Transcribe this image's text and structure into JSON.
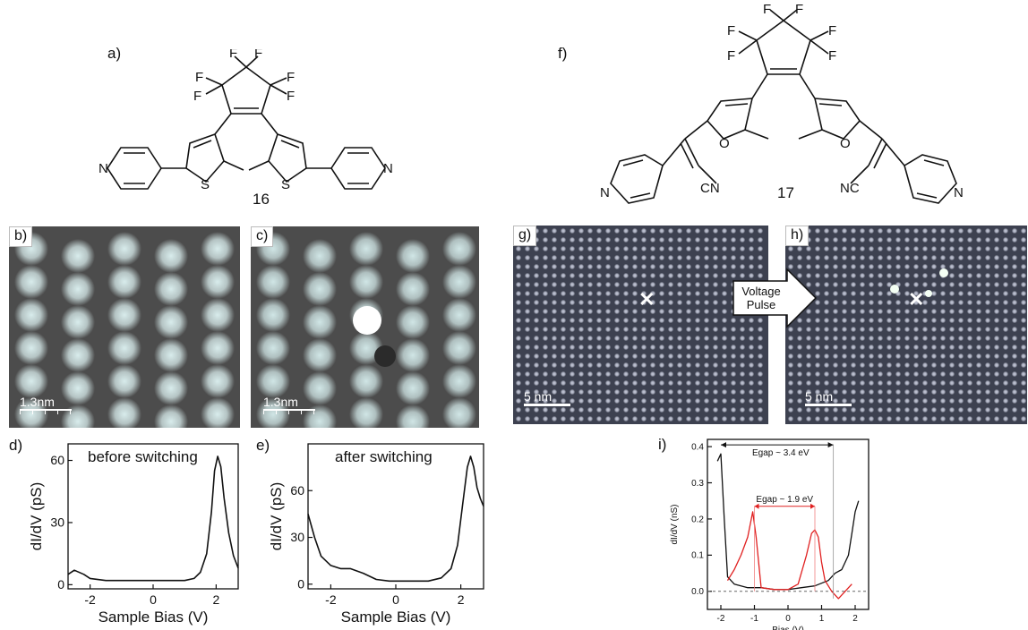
{
  "panels": {
    "a": {
      "label": "a)",
      "compound": "16"
    },
    "b": {
      "label": "b)",
      "scale": "1.3nm"
    },
    "c": {
      "label": "c)",
      "scale": "1.3nm"
    },
    "d": {
      "label": "d)",
      "title": "before switching",
      "xlabel": "Sample Bias (V)",
      "ylabel": "dI/dV (pS)"
    },
    "e": {
      "label": "e)",
      "title": "after switching",
      "xlabel": "Sample Bias (V)",
      "ylabel": "dI/dV (pS)"
    },
    "f": {
      "label": "f)",
      "compound": "17"
    },
    "g": {
      "label": "g)",
      "scale": "5 nm"
    },
    "h": {
      "label": "h)",
      "scale": "5 nm"
    },
    "arrow": {
      "line1": "Voltage",
      "line2": "Pulse"
    },
    "i": {
      "label": "i)",
      "xlabel": "Bias (V)",
      "ylabel": "dI/dV (nS)",
      "gap_black": "Egap ~ 3.4 eV",
      "gap_red": "Egap ~ 1.9 eV"
    }
  },
  "molecule_atoms": {
    "F": "F",
    "N": "N",
    "S": "S",
    "O": "O",
    "CN": "CN",
    "NC": "NC"
  },
  "chart_data": [
    {
      "type": "line",
      "title": "before switching",
      "xlabel": "Sample Bias (V)",
      "ylabel": "dI/dV (pS)",
      "xlim": [
        -2.7,
        2.7
      ],
      "ylim": [
        -2,
        68
      ],
      "xticks": [
        -2,
        0,
        2
      ],
      "yticks": [
        0,
        30,
        60
      ],
      "series": [
        {
          "color": "#111111",
          "x": [
            -2.7,
            -2.5,
            -2.2,
            -2.0,
            -1.5,
            -1.0,
            -0.5,
            0.0,
            0.5,
            1.0,
            1.3,
            1.5,
            1.7,
            1.85,
            1.95,
            2.05,
            2.15,
            2.25,
            2.4,
            2.55,
            2.7
          ],
          "y": [
            5,
            7,
            5,
            3,
            2,
            2,
            2,
            2,
            2,
            2,
            3,
            6,
            15,
            35,
            55,
            62,
            57,
            42,
            25,
            14,
            8
          ]
        }
      ]
    },
    {
      "type": "line",
      "title": "after switching",
      "xlabel": "Sample Bias (V)",
      "ylabel": "dI/dV (pS)",
      "xlim": [
        -2.7,
        2.7
      ],
      "ylim": [
        -3,
        90
      ],
      "xticks": [
        -2,
        0,
        2
      ],
      "yticks": [
        0,
        30,
        60
      ],
      "series": [
        {
          "color": "#111111",
          "x": [
            -2.7,
            -2.5,
            -2.3,
            -2.0,
            -1.7,
            -1.4,
            -1.0,
            -0.6,
            -0.2,
            0.2,
            0.6,
            1.0,
            1.4,
            1.7,
            1.9,
            2.05,
            2.2,
            2.3,
            2.4,
            2.5,
            2.6,
            2.7
          ],
          "y": [
            45,
            30,
            18,
            12,
            10,
            10,
            7,
            3,
            2,
            2,
            2,
            2,
            4,
            10,
            25,
            50,
            75,
            82,
            75,
            62,
            55,
            50
          ]
        }
      ]
    },
    {
      "type": "line",
      "xlabel": "Bias (V)",
      "ylabel": "dI/dV (nS)",
      "xlim": [
        -2.4,
        2.4
      ],
      "ylim": [
        -0.05,
        0.42
      ],
      "xticks": [
        -2,
        -1,
        0,
        1,
        2
      ],
      "yticks": [
        0.0,
        0.1,
        0.2,
        0.3,
        0.4
      ],
      "series": [
        {
          "color": "#111111",
          "x": [
            -2.1,
            -2.0,
            -1.9,
            -1.8,
            -1.6,
            -1.2,
            -0.8,
            -0.4,
            0.0,
            0.4,
            0.8,
            1.2,
            1.4,
            1.6,
            1.8,
            1.9,
            2.0,
            2.1
          ],
          "y": [
            0.36,
            0.38,
            0.2,
            0.04,
            0.02,
            0.01,
            0.01,
            0.005,
            0.005,
            0.01,
            0.015,
            0.03,
            0.05,
            0.06,
            0.1,
            0.16,
            0.22,
            0.25
          ]
        },
        {
          "color": "#e02020",
          "x": [
            -1.8,
            -1.6,
            -1.4,
            -1.2,
            -1.05,
            -0.95,
            -0.8,
            -0.4,
            0.0,
            0.3,
            0.55,
            0.7,
            0.8,
            0.9,
            1.0,
            1.1,
            1.3,
            1.5,
            1.7,
            1.9
          ],
          "y": [
            0.03,
            0.06,
            0.1,
            0.15,
            0.22,
            0.15,
            0.01,
            0.005,
            0.005,
            0.02,
            0.1,
            0.16,
            0.17,
            0.15,
            0.08,
            0.03,
            0.0,
            -0.02,
            0.0,
            0.02
          ]
        }
      ]
    }
  ]
}
